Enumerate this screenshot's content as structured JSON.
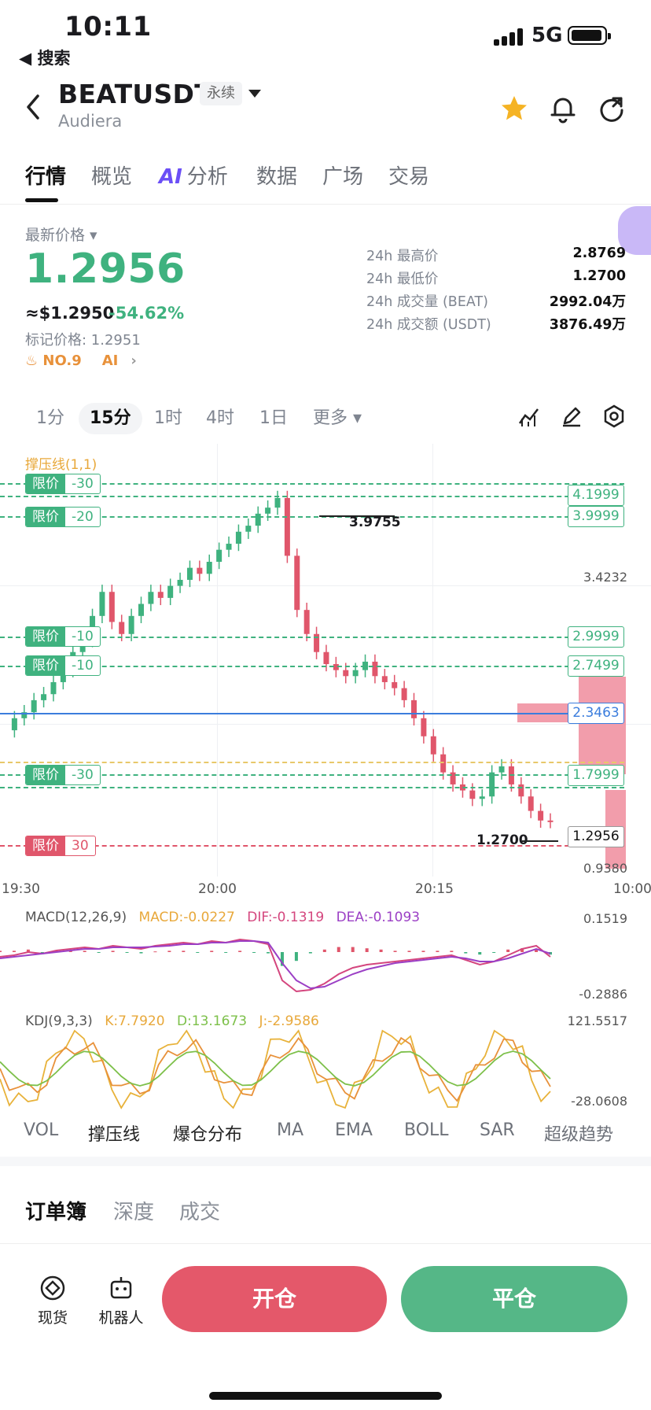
{
  "status_bar": {
    "time": "10:11",
    "back_label": "◀ 搜索",
    "network": "5G"
  },
  "header": {
    "symbol": "BEATUSDT",
    "badge": "永续",
    "subtitle": "Audiera"
  },
  "tabs": [
    "行情",
    "概览",
    "分析",
    "数据",
    "广场",
    "交易"
  ],
  "price": {
    "latest_label": "最新价格",
    "last": "1.2956",
    "usd": "≈$1.2950",
    "change": "-54.62%",
    "mark": "标记价格: 1.2951",
    "rank": "NO.9",
    "ai": "AI",
    "stats": [
      {
        "k": "24h 最高价",
        "v": "2.8769"
      },
      {
        "k": "24h 最低价",
        "v": "1.2700"
      },
      {
        "k": "24h 成交量 (BEAT)",
        "v": "2992.04万"
      },
      {
        "k": "24h 成交额 (USDT)",
        "v": "3876.49万"
      }
    ]
  },
  "intervals": {
    "items": [
      "1分",
      "15分",
      "1时",
      "4时",
      "1日"
    ],
    "more": "更多"
  },
  "chart_data": {
    "type": "candlestick",
    "indicator_title": "撑压线(1,1)",
    "price_axis": [
      "3.4232",
      "0.9380"
    ],
    "time_axis": [
      "19:30",
      "20:00",
      "20:15",
      "10:00"
    ],
    "last_price": "1.2956",
    "current_line": "2.3463",
    "high_label": "3.9755",
    "low_label": "1.2700",
    "order_tags_left": [
      {
        "a": "限价",
        "b": "-30"
      },
      {
        "a": "限价",
        "b": "-20"
      },
      {
        "a": "限价",
        "b": "-10"
      },
      {
        "a": "限价",
        "b": "-10"
      },
      {
        "a": "限价",
        "b": "-30"
      },
      {
        "a": "限价",
        "b": "30"
      }
    ],
    "order_tags_right": [
      "4.1999",
      "3.9999",
      "2.9999",
      "2.7499",
      "1.7999"
    ],
    "closes": [
      2.05,
      2.15,
      2.2,
      2.3,
      2.35,
      2.45,
      2.55,
      2.7,
      2.8,
      3.0,
      3.2,
      2.95,
      2.85,
      3.0,
      3.1,
      3.2,
      3.15,
      3.25,
      3.3,
      3.4,
      3.35,
      3.45,
      3.55,
      3.6,
      3.7,
      3.75,
      3.85,
      3.9,
      3.98,
      3.5,
      3.05,
      2.85,
      2.7,
      2.6,
      2.55,
      2.5,
      2.55,
      2.62,
      2.5,
      2.45,
      2.4,
      2.3,
      2.15,
      2.0,
      1.85,
      1.7,
      1.6,
      1.55,
      1.48,
      1.5,
      1.7,
      1.75,
      1.6,
      1.5,
      1.38,
      1.3,
      1.296
    ]
  },
  "macd": {
    "title": "MACD(12,26,9)",
    "macd": "MACD:-0.0227",
    "dif": "DIF:-0.1319",
    "dea": "DEA:-0.1093",
    "max": "0.1519",
    "min": "-0.2886"
  },
  "kdj": {
    "title": "KDJ(9,3,3)",
    "k": "K:7.7920",
    "d": "D:13.1673",
    "j": "J:-2.9586",
    "max": "121.5517",
    "min": "-28.0608"
  },
  "indicator_tabs": [
    "VOL",
    "撑压线",
    "爆仓分布",
    "MA",
    "EMA",
    "BOLL",
    "SAR",
    "超级趋势"
  ],
  "orderbook_tabs": [
    "订单簿",
    "深度",
    "成交"
  ],
  "bottom": {
    "spot": "现货",
    "bot": "机器人",
    "open": "开仓",
    "close": "平仓"
  },
  "colors": {
    "up": "#3fb27f",
    "down": "#e0566b",
    "blue": "#3b7ddd"
  }
}
